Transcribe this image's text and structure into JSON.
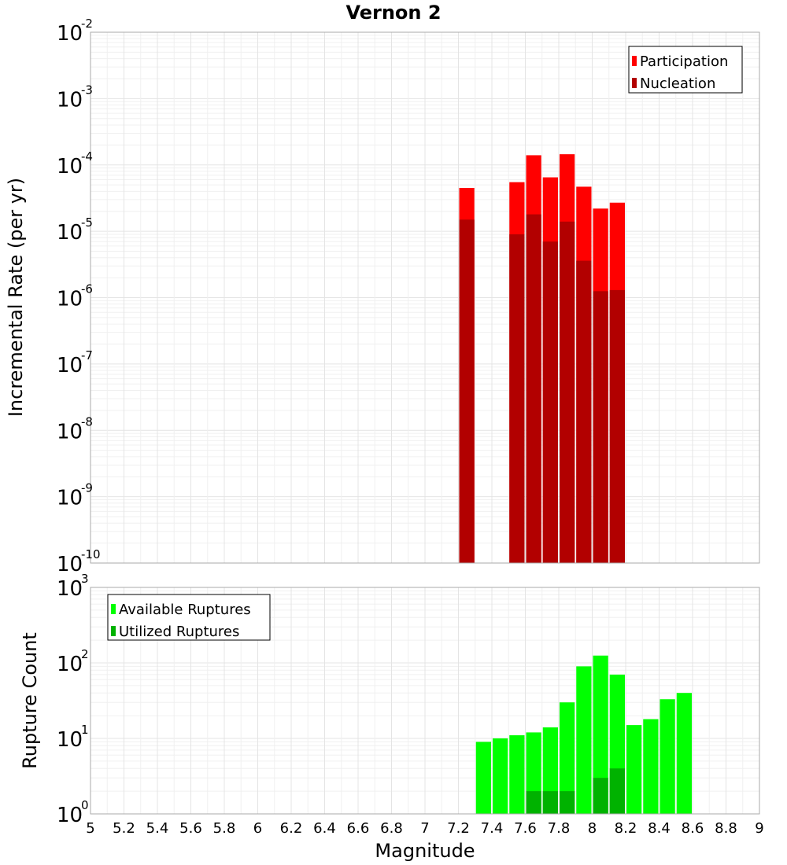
{
  "title": "Vernon 2",
  "x_axis": {
    "label": "Magnitude",
    "range": [
      5,
      9
    ],
    "tick_step": 0.2,
    "tick_labels": [
      "5",
      "5.2",
      "5.4",
      "5.6",
      "5.8",
      "6",
      "6.2",
      "6.4",
      "6.6",
      "6.8",
      "7",
      "7.2",
      "7.4",
      "7.6",
      "7.8",
      "8",
      "8.2",
      "8.4",
      "8.6",
      "8.8",
      "9"
    ]
  },
  "chart_data": [
    {
      "type": "bar",
      "name": "rates",
      "title": "Vernon 2",
      "xlabel": "Magnitude",
      "ylabel": "Incremental Rate (per yr)",
      "yscale": "log",
      "ylim_exp": [
        -10,
        -2
      ],
      "xlim": [
        5,
        9
      ],
      "bin_width": 0.1,
      "legend_position": "top-right",
      "colors": {
        "Participation": "#ff0000",
        "Nucleation": "#b20000"
      },
      "series": [
        {
          "name": "Participation",
          "x": [
            7.25,
            7.55,
            7.65,
            7.75,
            7.85,
            7.95,
            8.05,
            8.15
          ],
          "values": [
            4.5e-05,
            5.5e-05,
            0.00014,
            6.5e-05,
            0.000145,
            4.7e-05,
            2.2e-05,
            2.7e-05
          ]
        },
        {
          "name": "Nucleation",
          "x": [
            7.25,
            7.55,
            7.65,
            7.75,
            7.85,
            7.95,
            8.05,
            8.15
          ],
          "values": [
            1.5e-05,
            9e-06,
            1.8e-05,
            7e-06,
            1.4e-05,
            3.6e-06,
            1.25e-06,
            1.3e-06
          ]
        }
      ]
    },
    {
      "type": "bar",
      "name": "counts",
      "xlabel": "Magnitude",
      "ylabel": "Rupture Count",
      "yscale": "log",
      "ylim_exp": [
        0,
        3
      ],
      "xlim": [
        5,
        9
      ],
      "bin_width": 0.1,
      "legend_position": "top-left",
      "colors": {
        "Available Ruptures": "#00ff00",
        "Utilized Ruptures": "#00b200"
      },
      "series": [
        {
          "name": "Available Ruptures",
          "x": [
            6.75,
            7.15,
            7.25,
            7.35,
            7.45,
            7.55,
            7.65,
            7.75,
            7.85,
            7.95,
            8.05,
            8.15,
            8.25,
            8.35,
            8.45,
            8.55
          ],
          "values": [
            1,
            1,
            1,
            9,
            10,
            11,
            12,
            14,
            30,
            90,
            125,
            70,
            15,
            18,
            33,
            40
          ]
        },
        {
          "name": "Utilized Ruptures",
          "x": [
            7.25,
            7.55,
            7.65,
            7.75,
            7.85,
            7.95,
            8.05,
            8.15
          ],
          "values": [
            1,
            1,
            2,
            2,
            2,
            1,
            3,
            4
          ]
        }
      ]
    }
  ]
}
